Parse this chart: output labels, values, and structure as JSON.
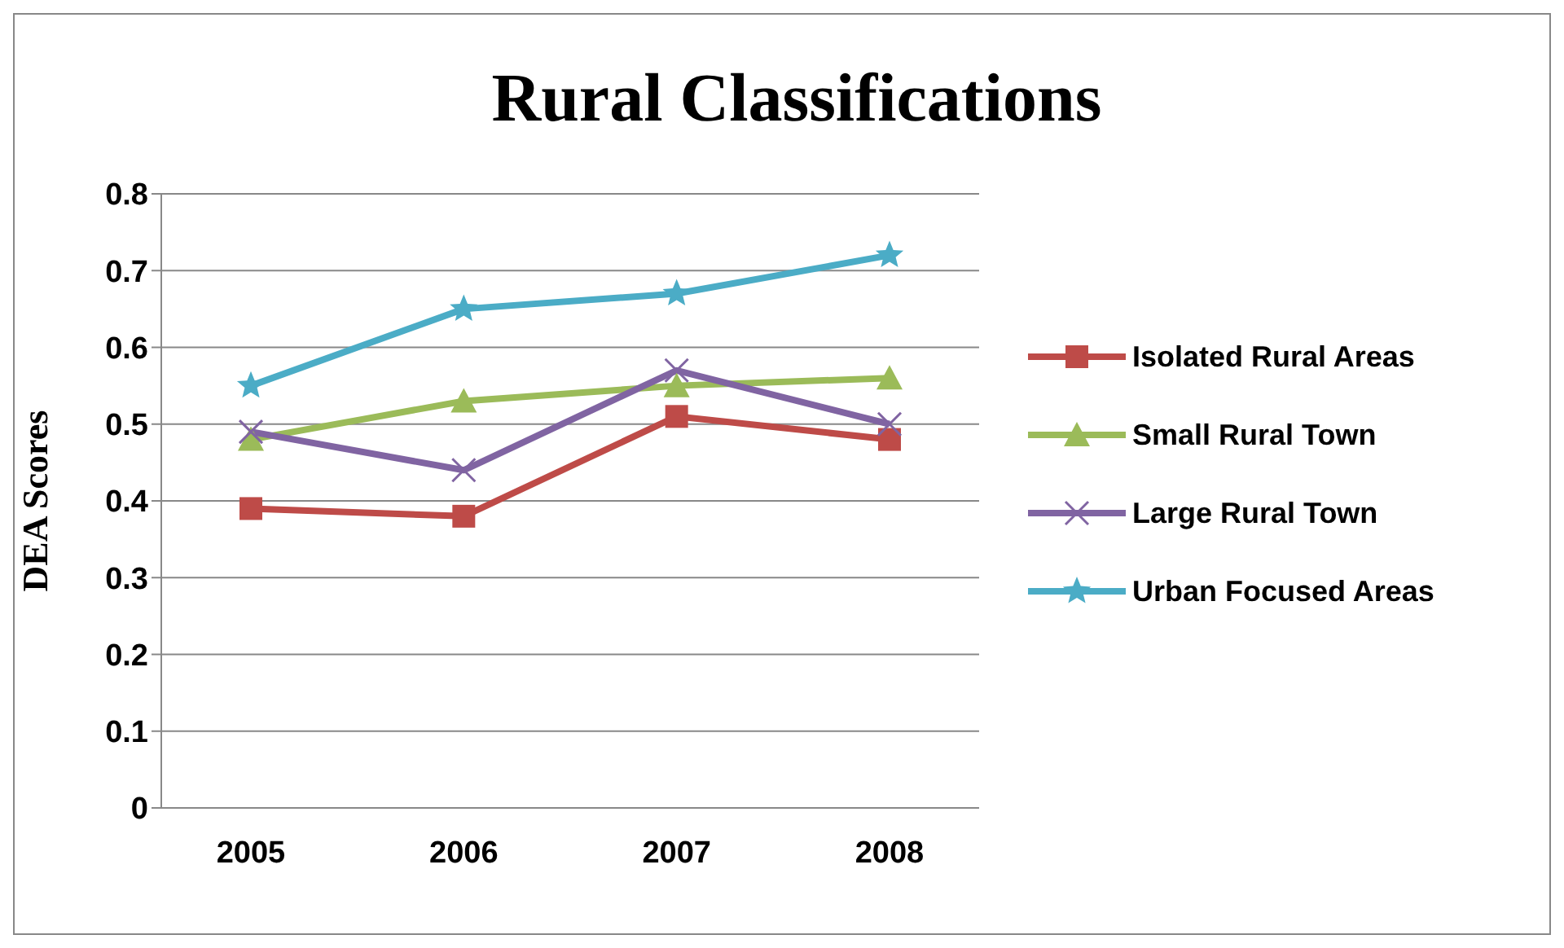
{
  "chart_data": {
    "type": "line",
    "title": "Rural Classifications",
    "ylabel": "DEA Scores",
    "categories": [
      "2005",
      "2006",
      "2007",
      "2008"
    ],
    "series": [
      {
        "name": "Isolated Rural Areas",
        "color": "#be4b48",
        "marker": "square",
        "values": [
          0.39,
          0.38,
          0.51,
          0.48
        ]
      },
      {
        "name": "Small Rural Town",
        "color": "#9bbb59",
        "marker": "triangle",
        "values": [
          0.48,
          0.53,
          0.55,
          0.56
        ]
      },
      {
        "name": "Large Rural Town",
        "color": "#8064a2",
        "marker": "cross",
        "values": [
          0.49,
          0.44,
          0.57,
          0.5
        ]
      },
      {
        "name": "Urban Focused Areas",
        "color": "#4bacc6",
        "marker": "star",
        "values": [
          0.55,
          0.65,
          0.67,
          0.72
        ]
      }
    ],
    "ylim": [
      0,
      0.8
    ],
    "yticks": [
      0,
      0.1,
      0.2,
      0.3,
      0.4,
      0.5,
      0.6,
      0.7,
      0.8
    ],
    "grid": "y",
    "legend": "right"
  }
}
